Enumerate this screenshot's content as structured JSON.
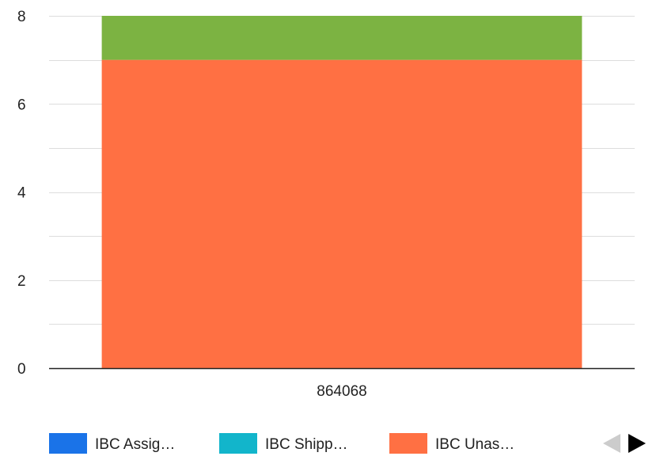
{
  "chart_data": {
    "type": "bar",
    "stacked": true,
    "categories": [
      "864068"
    ],
    "series": [
      {
        "name": "IBC Assig…",
        "values": [
          0
        ],
        "color": "#1a73e8"
      },
      {
        "name": "IBC Shipp…",
        "values": [
          0
        ],
        "color": "#12b5cb"
      },
      {
        "name": "IBC Unas…",
        "values": [
          7
        ],
        "color": "#ff7043"
      },
      {
        "values": [
          1
        ],
        "color": "#7cb342"
      }
    ],
    "ylim": [
      0,
      8
    ],
    "yticks": [
      "0",
      "2",
      "4",
      "6",
      "8"
    ],
    "grid": true,
    "legend": "bottom",
    "legend_nav": {
      "prev_icon": "triangle-left-icon",
      "next_icon": "triangle-right-icon",
      "prev_color": "#cccccc",
      "next_color": "#000000"
    }
  }
}
